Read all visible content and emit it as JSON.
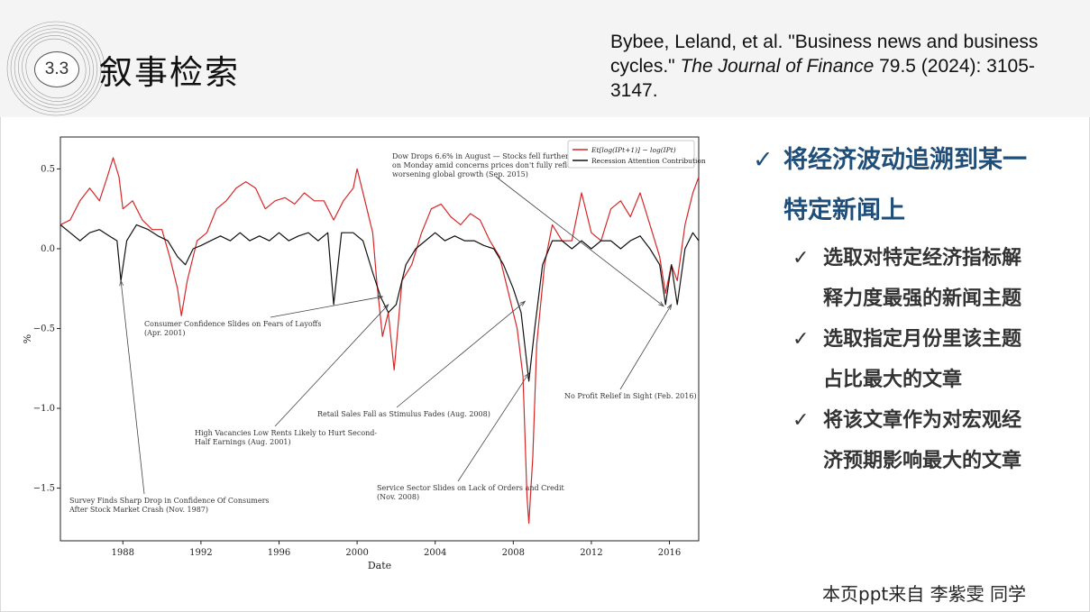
{
  "slide": {
    "section_number": "3.3",
    "title": "叙事检索",
    "credit": "本页ppt来自 李紫雯 同学"
  },
  "citation": {
    "part1": "Bybee, Leland, et al. \"Business news and business cycles.\" ",
    "journal": "The Journal of Finance",
    "part2": " 79.5 (2024): 3105-3147."
  },
  "bullets": {
    "main": "将经济波动追溯到某一特定新闻上",
    "subs": [
      "选取对特定经济指标解释力度最强的新闻主题",
      "选取指定月份里该主题占比最大的文章",
      "将该文章作为对宏观经济预期影响最大的文章"
    ]
  },
  "chart_data": {
    "type": "line",
    "xlabel": "Date",
    "ylabel": "%",
    "xlim": [
      1984.8,
      2017.5
    ],
    "ylim": [
      -1.83,
      0.7
    ],
    "x_ticks": [
      "1988",
      "1992",
      "1996",
      "2000",
      "2004",
      "2008",
      "2012",
      "2016"
    ],
    "y_ticks": [
      "0.5",
      "0.0",
      "−0.5",
      "−1.0",
      "−1.5"
    ],
    "legend_position": "top-right",
    "series": [
      {
        "name": "E_t[log(IP_{t+1})] − log(IP_t)",
        "legend_label": "Et[log(IPt+1)] − log(IPt)",
        "color": "#d62728",
        "points": [
          [
            1984.8,
            0.15
          ],
          [
            1985.3,
            0.18
          ],
          [
            1985.8,
            0.3
          ],
          [
            1986.3,
            0.38
          ],
          [
            1986.8,
            0.3
          ],
          [
            1987.2,
            0.45
          ],
          [
            1987.5,
            0.57
          ],
          [
            1987.8,
            0.45
          ],
          [
            1988.0,
            0.25
          ],
          [
            1988.5,
            0.3
          ],
          [
            1989.0,
            0.18
          ],
          [
            1989.5,
            0.12
          ],
          [
            1990.0,
            0.12
          ],
          [
            1990.4,
            -0.05
          ],
          [
            1990.8,
            -0.25
          ],
          [
            1991.0,
            -0.42
          ],
          [
            1991.3,
            -0.2
          ],
          [
            1991.8,
            0.05
          ],
          [
            1992.3,
            0.1
          ],
          [
            1992.8,
            0.25
          ],
          [
            1993.3,
            0.3
          ],
          [
            1993.8,
            0.38
          ],
          [
            1994.3,
            0.42
          ],
          [
            1994.8,
            0.38
          ],
          [
            1995.3,
            0.25
          ],
          [
            1995.8,
            0.3
          ],
          [
            1996.3,
            0.32
          ],
          [
            1996.8,
            0.28
          ],
          [
            1997.3,
            0.35
          ],
          [
            1997.8,
            0.3
          ],
          [
            1998.3,
            0.3
          ],
          [
            1998.8,
            0.18
          ],
          [
            1999.3,
            0.3
          ],
          [
            1999.8,
            0.38
          ],
          [
            2000.0,
            0.5
          ],
          [
            2000.4,
            0.3
          ],
          [
            2000.8,
            0.1
          ],
          [
            2001.0,
            -0.2
          ],
          [
            2001.3,
            -0.55
          ],
          [
            2001.6,
            -0.4
          ],
          [
            2001.9,
            -0.76
          ],
          [
            2002.3,
            -0.2
          ],
          [
            2002.8,
            -0.1
          ],
          [
            2003.3,
            0.1
          ],
          [
            2003.8,
            0.25
          ],
          [
            2004.3,
            0.28
          ],
          [
            2004.8,
            0.2
          ],
          [
            2005.3,
            0.15
          ],
          [
            2005.8,
            0.22
          ],
          [
            2006.3,
            0.18
          ],
          [
            2006.8,
            0.05
          ],
          [
            2007.3,
            -0.05
          ],
          [
            2007.8,
            -0.3
          ],
          [
            2008.2,
            -0.5
          ],
          [
            2008.5,
            -0.8
          ],
          [
            2008.7,
            -1.55
          ],
          [
            2008.8,
            -1.72
          ],
          [
            2009.0,
            -1.3
          ],
          [
            2009.2,
            -0.6
          ],
          [
            2009.6,
            -0.1
          ],
          [
            2010.0,
            0.15
          ],
          [
            2010.5,
            0.05
          ],
          [
            2011.0,
            0.05
          ],
          [
            2011.5,
            0.35
          ],
          [
            2012.0,
            0.1
          ],
          [
            2012.5,
            0.05
          ],
          [
            2013.0,
            0.25
          ],
          [
            2013.5,
            0.3
          ],
          [
            2014.0,
            0.2
          ],
          [
            2014.5,
            0.35
          ],
          [
            2015.0,
            0.15
          ],
          [
            2015.5,
            -0.05
          ],
          [
            2015.8,
            -0.28
          ],
          [
            2016.1,
            -0.1
          ],
          [
            2016.4,
            -0.2
          ],
          [
            2016.8,
            0.15
          ],
          [
            2017.2,
            0.35
          ],
          [
            2017.5,
            0.45
          ]
        ]
      },
      {
        "name": "Recession Attention Contribution",
        "legend_label": "Recession Attention Contribution",
        "color": "#111111",
        "points": [
          [
            1984.8,
            0.15
          ],
          [
            1985.3,
            0.1
          ],
          [
            1985.8,
            0.05
          ],
          [
            1986.3,
            0.1
          ],
          [
            1986.8,
            0.12
          ],
          [
            1987.3,
            0.08
          ],
          [
            1987.7,
            0.05
          ],
          [
            1987.9,
            -0.2
          ],
          [
            1988.2,
            0.05
          ],
          [
            1988.7,
            0.15
          ],
          [
            1989.3,
            0.12
          ],
          [
            1989.8,
            0.08
          ],
          [
            1990.3,
            0.05
          ],
          [
            1990.8,
            -0.05
          ],
          [
            1991.2,
            -0.1
          ],
          [
            1991.6,
            0.0
          ],
          [
            1992.0,
            0.02
          ],
          [
            1992.5,
            0.05
          ],
          [
            1993.0,
            0.08
          ],
          [
            1993.5,
            0.05
          ],
          [
            1994.0,
            0.1
          ],
          [
            1994.5,
            0.05
          ],
          [
            1995.0,
            0.08
          ],
          [
            1995.5,
            0.05
          ],
          [
            1996.0,
            0.1
          ],
          [
            1996.5,
            0.05
          ],
          [
            1997.0,
            0.08
          ],
          [
            1997.5,
            0.1
          ],
          [
            1998.0,
            0.05
          ],
          [
            1998.5,
            0.1
          ],
          [
            1998.8,
            -0.35
          ],
          [
            1999.2,
            0.1
          ],
          [
            1999.8,
            0.1
          ],
          [
            2000.3,
            0.05
          ],
          [
            2000.8,
            -0.15
          ],
          [
            2001.2,
            -0.3
          ],
          [
            2001.6,
            -0.4
          ],
          [
            2002.0,
            -0.35
          ],
          [
            2002.5,
            -0.1
          ],
          [
            2003.0,
            0.0
          ],
          [
            2003.5,
            0.05
          ],
          [
            2004.0,
            0.1
          ],
          [
            2004.5,
            0.05
          ],
          [
            2005.0,
            0.08
          ],
          [
            2005.5,
            0.05
          ],
          [
            2006.0,
            0.05
          ],
          [
            2006.5,
            0.02
          ],
          [
            2007.0,
            0.0
          ],
          [
            2007.5,
            -0.1
          ],
          [
            2008.0,
            -0.25
          ],
          [
            2008.4,
            -0.4
          ],
          [
            2008.8,
            -0.83
          ],
          [
            2009.1,
            -0.5
          ],
          [
            2009.5,
            -0.1
          ],
          [
            2010.0,
            0.05
          ],
          [
            2010.5,
            0.05
          ],
          [
            2011.0,
            0.0
          ],
          [
            2011.5,
            0.05
          ],
          [
            2012.0,
            0.0
          ],
          [
            2012.5,
            0.05
          ],
          [
            2013.0,
            0.05
          ],
          [
            2013.5,
            0.0
          ],
          [
            2014.0,
            0.05
          ],
          [
            2014.5,
            0.08
          ],
          [
            2015.0,
            0.0
          ],
          [
            2015.5,
            -0.1
          ],
          [
            2015.8,
            -0.35
          ],
          [
            2016.1,
            -0.1
          ],
          [
            2016.4,
            -0.35
          ],
          [
            2016.8,
            0.0
          ],
          [
            2017.2,
            0.1
          ],
          [
            2017.5,
            0.05
          ]
        ]
      }
    ],
    "annotations": [
      {
        "lines": [
          "Dow Drops 6.6% in August — Stocks fell further",
          "on Monday amid concerns prices don't fully reflect",
          "worsening global growth (Sep. 2015)"
        ],
        "target": [
          2015.7,
          -0.36
        ]
      },
      {
        "lines": [
          "Consumer Confidence Slides on Fears of Layoffs",
          "(Apr. 2001)"
        ],
        "target": [
          2001.3,
          -0.3
        ]
      },
      {
        "lines": [
          "Retail Sales Fall as Stimulus Fades (Aug. 2008)"
        ],
        "target": [
          2008.6,
          -0.33
        ]
      },
      {
        "lines": [
          "High Vacancies Low Rents Likely to Hurt Second-",
          "Half Earnings (Aug. 2001)"
        ],
        "target": [
          2001.6,
          -0.35
        ]
      },
      {
        "lines": [
          "No Profit Relief in Sight (Feb. 2016)"
        ],
        "target": [
          2016.1,
          -0.35
        ]
      },
      {
        "lines": [
          "Service Sector Slides on Lack of Orders and Credit",
          "(Nov. 2008)"
        ],
        "target": [
          2008.8,
          -0.78
        ]
      },
      {
        "lines": [
          "Survey Finds Sharp Drop in Confidence Of Consumers",
          "After Stock Market Crash (Nov. 1987)"
        ],
        "target": [
          1987.9,
          -0.2
        ]
      }
    ]
  }
}
